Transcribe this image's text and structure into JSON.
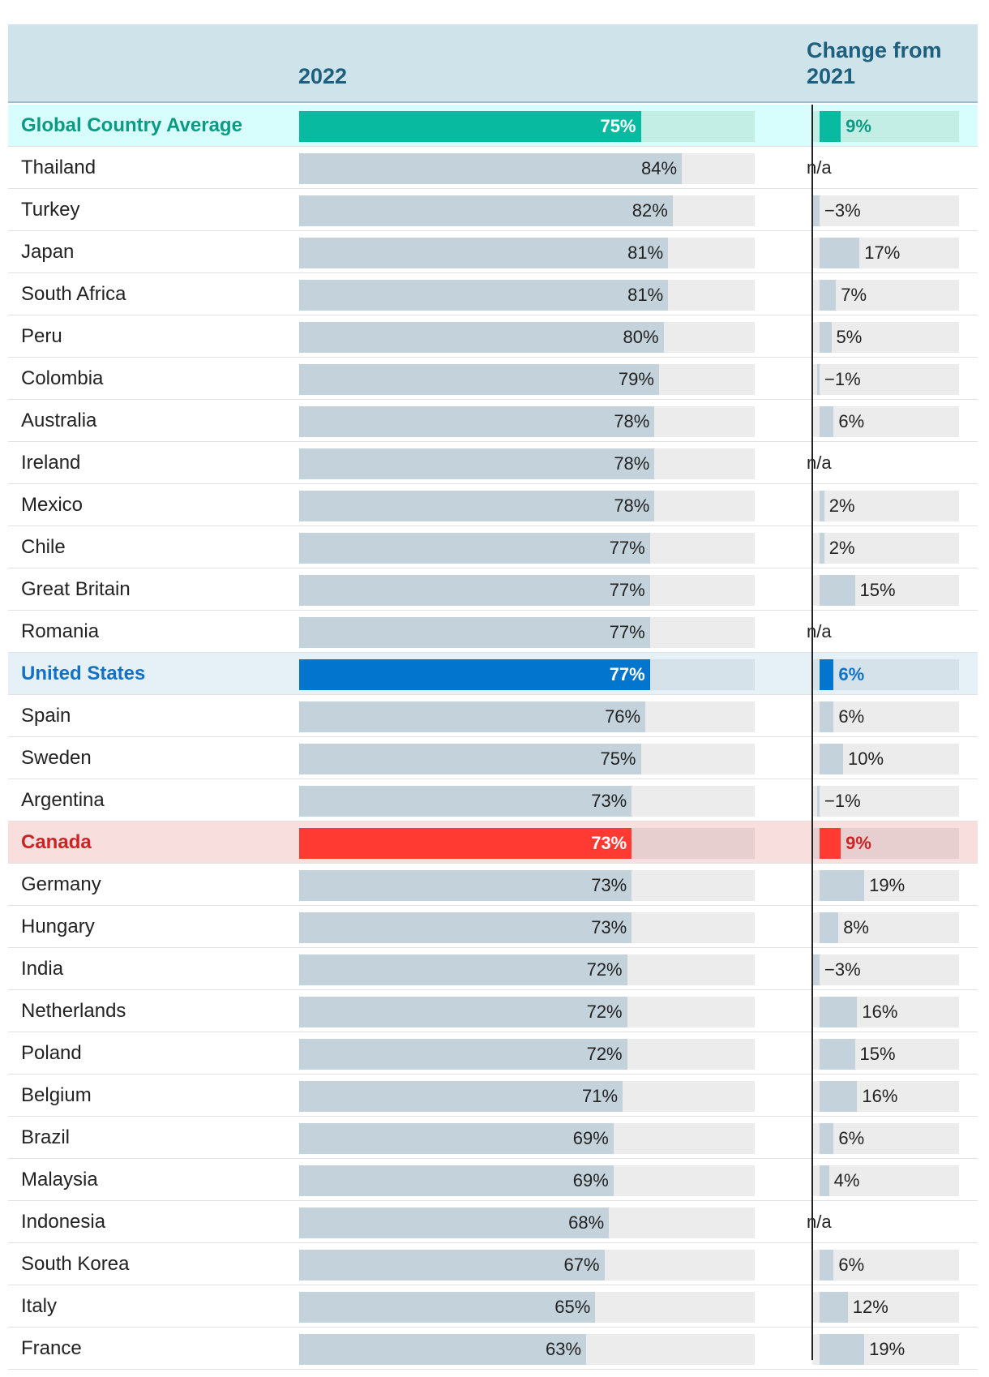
{
  "chart_data": {
    "type": "bar",
    "column_headers": {
      "current": "2022",
      "change": "Change from 2021"
    },
    "xlim": [
      0,
      100
    ],
    "change_lim": [
      -5,
      100
    ],
    "rows": [
      {
        "country": "Global Country Average",
        "value": 75,
        "value_label": "75%",
        "change": 9,
        "change_label": "9%",
        "highlight": "green"
      },
      {
        "country": "Thailand",
        "value": 84,
        "value_label": "84%",
        "change": null,
        "change_label": "n/a"
      },
      {
        "country": "Turkey",
        "value": 82,
        "value_label": "82%",
        "change": -3,
        "change_label": "−3%"
      },
      {
        "country": "Japan",
        "value": 81,
        "value_label": "81%",
        "change": 17,
        "change_label": "17%"
      },
      {
        "country": "South Africa",
        "value": 81,
        "value_label": "81%",
        "change": 7,
        "change_label": "7%"
      },
      {
        "country": "Peru",
        "value": 80,
        "value_label": "80%",
        "change": 5,
        "change_label": "5%"
      },
      {
        "country": "Colombia",
        "value": 79,
        "value_label": "79%",
        "change": -1,
        "change_label": "−1%"
      },
      {
        "country": "Australia",
        "value": 78,
        "value_label": "78%",
        "change": 6,
        "change_label": "6%"
      },
      {
        "country": "Ireland",
        "value": 78,
        "value_label": "78%",
        "change": null,
        "change_label": "n/a"
      },
      {
        "country": "Mexico",
        "value": 78,
        "value_label": "78%",
        "change": 2,
        "change_label": "2%"
      },
      {
        "country": "Chile",
        "value": 77,
        "value_label": "77%",
        "change": 2,
        "change_label": "2%"
      },
      {
        "country": "Great Britain",
        "value": 77,
        "value_label": "77%",
        "change": 15,
        "change_label": "15%"
      },
      {
        "country": "Romania",
        "value": 77,
        "value_label": "77%",
        "change": null,
        "change_label": "n/a"
      },
      {
        "country": "United States",
        "value": 77,
        "value_label": "77%",
        "change": 6,
        "change_label": "6%",
        "highlight": "blue"
      },
      {
        "country": "Spain",
        "value": 76,
        "value_label": "76%",
        "change": 6,
        "change_label": "6%"
      },
      {
        "country": "Sweden",
        "value": 75,
        "value_label": "75%",
        "change": 10,
        "change_label": "10%"
      },
      {
        "country": "Argentina",
        "value": 73,
        "value_label": "73%",
        "change": -1,
        "change_label": "−1%"
      },
      {
        "country": "Canada",
        "value": 73,
        "value_label": "73%",
        "change": 9,
        "change_label": "9%",
        "highlight": "red"
      },
      {
        "country": "Germany",
        "value": 73,
        "value_label": "73%",
        "change": 19,
        "change_label": "19%"
      },
      {
        "country": "Hungary",
        "value": 73,
        "value_label": "73%",
        "change": 8,
        "change_label": "8%"
      },
      {
        "country": "India",
        "value": 72,
        "value_label": "72%",
        "change": -3,
        "change_label": "−3%"
      },
      {
        "country": "Netherlands",
        "value": 72,
        "value_label": "72%",
        "change": 16,
        "change_label": "16%"
      },
      {
        "country": "Poland",
        "value": 72,
        "value_label": "72%",
        "change": 15,
        "change_label": "15%"
      },
      {
        "country": "Belgium",
        "value": 71,
        "value_label": "71%",
        "change": 16,
        "change_label": "16%"
      },
      {
        "country": "Brazil",
        "value": 69,
        "value_label": "69%",
        "change": 6,
        "change_label": "6%"
      },
      {
        "country": "Malaysia",
        "value": 69,
        "value_label": "69%",
        "change": 4,
        "change_label": "4%"
      },
      {
        "country": "Indonesia",
        "value": 68,
        "value_label": "68%",
        "change": null,
        "change_label": "n/a"
      },
      {
        "country": "South Korea",
        "value": 67,
        "value_label": "67%",
        "change": 6,
        "change_label": "6%"
      },
      {
        "country": "Italy",
        "value": 65,
        "value_label": "65%",
        "change": 12,
        "change_label": "12%"
      },
      {
        "country": "France",
        "value": 63,
        "value_label": "63%",
        "change": 19,
        "change_label": "19%"
      }
    ]
  }
}
